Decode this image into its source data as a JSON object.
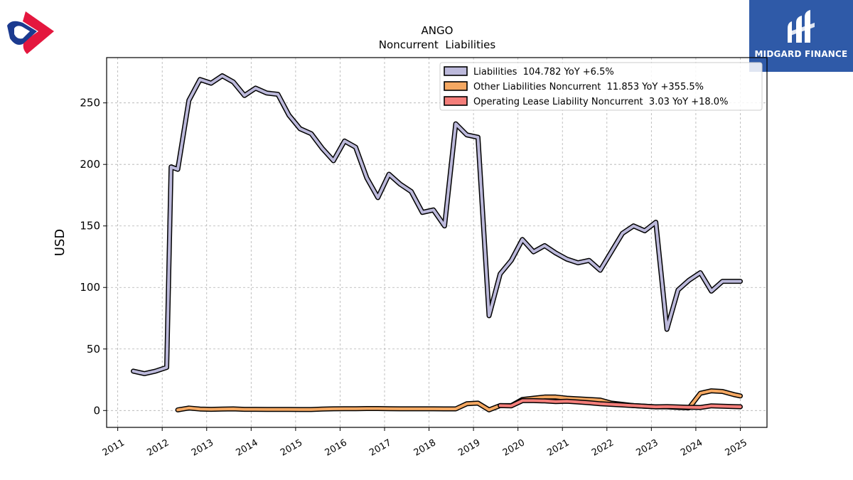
{
  "brand": {
    "name": "MIDGARD FINANCE",
    "primary_color": "#2f5aa8",
    "logo_colors": [
      "#e4173e",
      "#1b3a8f"
    ]
  },
  "chart_data": {
    "type": "line",
    "title": "ANGO",
    "subtitle": "Noncurrent  Liabilities",
    "xlabel": "",
    "ylabel": "USD",
    "xlim": [
      2010.75,
      2025.6
    ],
    "ylim": [
      -13.7,
      286.8
    ],
    "x_ticks": [
      2011,
      2012,
      2013,
      2014,
      2015,
      2016,
      2017,
      2018,
      2019,
      2020,
      2021,
      2022,
      2023,
      2024,
      2025
    ],
    "x_tick_labels": [
      "2011",
      "2012",
      "2013",
      "2014",
      "2015",
      "2016",
      "2017",
      "2018",
      "2019",
      "2020",
      "2021",
      "2022",
      "2023",
      "2024",
      "2025"
    ],
    "y_ticks": [
      0,
      50,
      100,
      150,
      200,
      250
    ],
    "y_tick_labels": [
      "0",
      "50",
      "100",
      "150",
      "200",
      "250"
    ],
    "grid": true,
    "legend_position": "top-right",
    "series": [
      {
        "name": "Liabilities",
        "legend": "Liabilities  104.782 YoY +6.5%",
        "color": "#bcb9db",
        "x": [
          2011.35,
          2011.6,
          2011.85,
          2012.1,
          2012.2,
          2012.35,
          2012.6,
          2012.85,
          2013.1,
          2013.35,
          2013.6,
          2013.85,
          2014.1,
          2014.35,
          2014.6,
          2014.85,
          2015.1,
          2015.35,
          2015.6,
          2015.85,
          2016.1,
          2016.35,
          2016.6,
          2016.85,
          2017.1,
          2017.35,
          2017.6,
          2017.85,
          2018.1,
          2018.35,
          2018.6,
          2018.85,
          2019.1,
          2019.35,
          2019.6,
          2019.85,
          2020.1,
          2020.35,
          2020.6,
          2020.85,
          2021.1,
          2021.35,
          2021.6,
          2021.85,
          2022.1,
          2022.35,
          2022.6,
          2022.85,
          2023.1,
          2023.35,
          2023.6,
          2023.85,
          2024.1,
          2024.35,
          2024.6,
          2024.85,
          2025.0
        ],
        "values": [
          32,
          30,
          32,
          35,
          198,
          196,
          252,
          269,
          266,
          272,
          267,
          256,
          262,
          258,
          257,
          240,
          229,
          225,
          213,
          203,
          219,
          214,
          189,
          173,
          192,
          184,
          178,
          161,
          163,
          150,
          233,
          224,
          222,
          77,
          111,
          122,
          139,
          129,
          134,
          128,
          123,
          120,
          122,
          114,
          129,
          144,
          150,
          146,
          153,
          66,
          98,
          106,
          112,
          97,
          105,
          105,
          105
        ]
      },
      {
        "name": "Other Liabilities Noncurrent",
        "legend": "Other Liabilities Noncurrent  11.853 YoY +355.5%",
        "color": "#f5a862",
        "x": [
          2012.35,
          2012.6,
          2012.85,
          2013.1,
          2013.35,
          2013.6,
          2013.85,
          2014.1,
          2014.35,
          2014.6,
          2014.85,
          2015.1,
          2015.35,
          2015.6,
          2015.85,
          2016.1,
          2016.35,
          2016.6,
          2016.85,
          2017.1,
          2017.35,
          2017.6,
          2017.85,
          2018.1,
          2018.35,
          2018.6,
          2018.85,
          2019.1,
          2019.35,
          2019.6,
          2019.85,
          2020.1,
          2020.35,
          2020.6,
          2020.85,
          2021.1,
          2021.35,
          2021.6,
          2021.85,
          2022.1,
          2022.35,
          2022.6,
          2022.85,
          2023.1,
          2023.35,
          2023.6,
          2023.85,
          2024.1,
          2024.35,
          2024.6,
          2024.85,
          2025.0
        ],
        "values": [
          0.5,
          2,
          1.2,
          1,
          1.2,
          1.3,
          1,
          1,
          0.9,
          0.9,
          0.9,
          0.8,
          0.8,
          1.2,
          1.4,
          1.5,
          1.5,
          1.6,
          1.6,
          1.5,
          1.4,
          1.4,
          1.4,
          1.4,
          1.3,
          1.3,
          5.5,
          6,
          0.5,
          4,
          4,
          9,
          10,
          11,
          11,
          10,
          9.5,
          9,
          8.5,
          6,
          5,
          4,
          3.5,
          3,
          3,
          2.5,
          2.2,
          14,
          16,
          15.5,
          13,
          11.853
        ]
      },
      {
        "name": "Operating Lease Liability Noncurrent",
        "legend": "Operating Lease Liability Noncurrent  3.03 YoY +18.0%",
        "color": "#f47e7a",
        "x": [
          2019.6,
          2019.85,
          2020.1,
          2020.35,
          2020.6,
          2020.85,
          2021.1,
          2021.35,
          2021.6,
          2021.85,
          2022.1,
          2022.35,
          2022.6,
          2022.85,
          2023.1,
          2023.35,
          2023.6,
          2023.85,
          2024.1,
          2024.35,
          2024.6,
          2024.85,
          2025.0
        ],
        "values": [
          4,
          3.8,
          8,
          8,
          7.8,
          7.2,
          7.5,
          7,
          6.3,
          5.5,
          5,
          4.5,
          4,
          3.5,
          3,
          3.2,
          2.9,
          2.6,
          2.5,
          3.8,
          3.5,
          3.2,
          3.03
        ]
      }
    ]
  }
}
